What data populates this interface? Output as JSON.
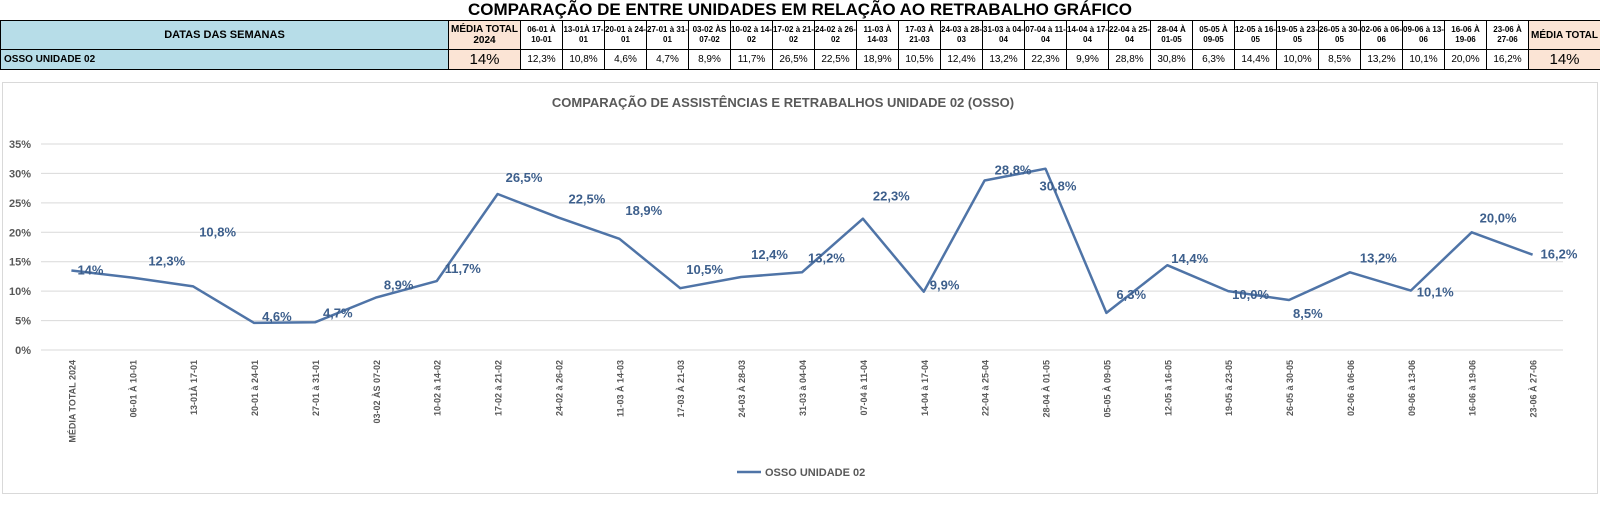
{
  "header": {
    "title": "COMPARAÇÃO DE ENTRE UNIDADES EM RELAÇÃO AO RETRABALHO GRÁFICO",
    "weeks_label": "DATAS DAS SEMANAS",
    "avg_2024_label": "MÉDIA TOTAL 2024",
    "avg_total_label": "MÉDIA TOTAL",
    "weeks": [
      "06-01 À 10-01",
      "13-01À 17-01",
      "20-01 à 24-01",
      "27-01 à 31-01",
      "03-02 ÀS 07-02",
      "10-02 à 14-02",
      "17-02 à 21-02",
      "24-02 à 26-02",
      "11-03 À 14-03",
      "17-03 À 21-03",
      "24-03 à 28-03",
      "31-03 à 04-04",
      "07-04 à 11-04",
      "14-04 à 17-04",
      "22-04 à 25-04",
      "28-04 À 01-05",
      "05-05 À 09-05",
      "12-05 à 16-05",
      "19-05 à 23-05",
      "26-05 à 30-05",
      "02-06 à 06-06",
      "09-06 à 13-06",
      "16-06 À 19-06",
      "23-06 À 27-06"
    ]
  },
  "row": {
    "unit": "OSSO UNIDADE 02",
    "avg_2024": "14%",
    "values": [
      "12,3%",
      "10,8%",
      "4,6%",
      "4,7%",
      "8,9%",
      "11,7%",
      "26,5%",
      "22,5%",
      "18,9%",
      "10,5%",
      "12,4%",
      "13,2%",
      "22,3%",
      "9,9%",
      "28,8%",
      "30,8%",
      "6,3%",
      "14,4%",
      "10,0%",
      "8,5%",
      "13,2%",
      "10,1%",
      "20,0%",
      "16,2%"
    ],
    "avg_total": "14%"
  },
  "chart_data": {
    "type": "line",
    "title": "COMPARAÇÃO DE ASSISTÊNCIAS E RETRABALHOS UNIDADE 02  (OSSO)",
    "categories": [
      "MÉDIA TOTAL 2024",
      "06-01 À 10-01",
      "13-01À 17-01",
      "20-01 à 24-01",
      "27-01 à 31-01",
      "03-02 ÀS 07-02",
      "10-02 à 14-02",
      "17-02 à 21-02",
      "24-02 à 26-02",
      "11-03  À 14-03",
      "17-03 À 21-03",
      "24-03 À 28-03",
      "31-03 à 04-04",
      "07-04 à 11-04",
      "14-04 à 17-04",
      "22-04 à 25-04",
      "28-04 À 01-05",
      "05-05 À 09-05",
      "12-05 à 16-05",
      "19-05 à 23-05",
      "26-05 à 30-05",
      "02-06 à 06-06",
      "09-06 à 13-06",
      "16-06 à 19-06",
      "23-06 À 27-06"
    ],
    "series": [
      {
        "name": "OSSO UNIDADE 02",
        "values": [
          13.5,
          12.3,
          10.8,
          4.6,
          4.7,
          8.9,
          11.7,
          26.5,
          22.5,
          18.9,
          10.5,
          12.4,
          13.2,
          22.3,
          9.9,
          28.8,
          30.8,
          6.3,
          14.4,
          10.0,
          8.5,
          13.2,
          10.1,
          20.0,
          16.2
        ],
        "labels": [
          "14%",
          "12,3%",
          "10,8%",
          "4,6%",
          "4,7%",
          "8,9%",
          "11,7%",
          "26,5%",
          "22,5%",
          "18,9%",
          "10,5%",
          "12,4%",
          "13,2%",
          "22,3%",
          "9,9%",
          "28,8%",
          "30,8%",
          "6,3%",
          "14,4%",
          "10,0%",
          "8,5%",
          "13,2%",
          "10,1%",
          "20,0%",
          "16,2%"
        ],
        "color": "#4f74a7"
      }
    ],
    "yticks": [
      "0%",
      "5%",
      "10%",
      "15%",
      "20%",
      "25%",
      "30%",
      "35%"
    ],
    "ylim": [
      0,
      35
    ],
    "grid": true,
    "legend": "bottom",
    "label_color": "#3d5f8c"
  }
}
